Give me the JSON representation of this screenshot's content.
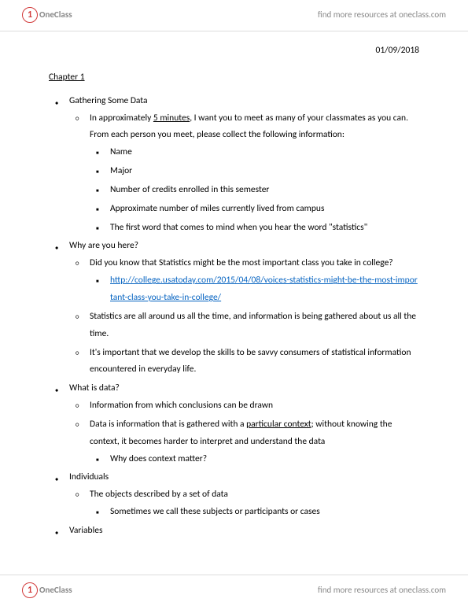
{
  "brand": {
    "icon": "1",
    "name": "OneClass",
    "tagline": "find more resources at oneclass.com"
  },
  "date": "01/09/2018",
  "chapter": "Chapter 1",
  "sections": [
    {
      "title": "Gathering Some Data",
      "sub": [
        {
          "text_a": "In approximately ",
          "u": "5 minutes",
          "text_b": ", I want you to meet as many of your classmates as you can.  From each person you meet, please collect the following information:",
          "bullets": [
            "Name",
            "Major",
            "Number of credits enrolled in this semester",
            "Approximate number of miles currently lived from campus",
            "The first word that comes to mind when you hear the word \"statistics\""
          ]
        }
      ]
    },
    {
      "title": "Why are you here?",
      "sub": [
        {
          "text_a": "Did you know that Statistics might be the most important class you take in college?",
          "link": "http://college.usatoday.com/2015/04/08/voices-statistics-might-be-the-most-important-class-you-take-in-college/"
        },
        {
          "text_a": "Statistics are all around us all the time, and information is being gathered about us all the time."
        },
        {
          "text_a": "It's important that we develop the skills to be savvy consumers of statistical information encountered in everyday life."
        }
      ]
    },
    {
      "title": "What is data?",
      "sub": [
        {
          "text_a": "Information from which conclusions can be drawn"
        },
        {
          "text_a": "Data is information that is gathered with a ",
          "u": "particular context",
          "text_b": "; without knowing the context, it becomes harder to interpret and understand the data",
          "bullets": [
            "Why does context matter?"
          ]
        }
      ]
    },
    {
      "title": "Individuals",
      "sub": [
        {
          "text_a": "The objects described by a set of data",
          "bullets": [
            "Sometimes we call these subjects or participants or cases"
          ]
        }
      ]
    },
    {
      "title": "Variables"
    }
  ]
}
